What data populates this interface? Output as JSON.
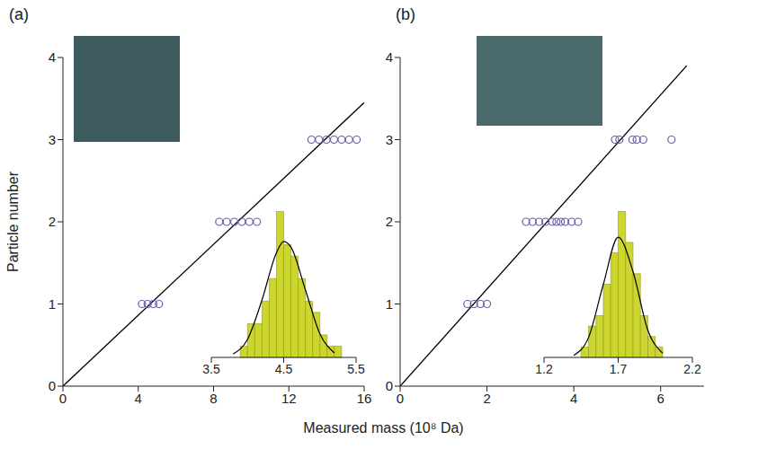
{
  "chart_data": [
    {
      "type": "scatter",
      "title": "(a)",
      "x_label": "Measured mass (10⁸ Da)",
      "y_label": "Particle number",
      "xlim": [
        0,
        16
      ],
      "xticks": [
        0,
        4,
        8,
        12,
        16
      ],
      "ylim": [
        0,
        4
      ],
      "yticks": [
        0,
        1,
        2,
        3,
        4
      ],
      "grid": false,
      "series": [
        {
          "type": "scatter",
          "color": "#6a5aa8",
          "marker": "circle_open",
          "x": [
            4.2,
            4.5,
            4.8,
            5.1,
            8.3,
            8.7,
            9.1,
            9.5,
            9.9,
            10.3,
            13.2,
            13.6,
            14.0,
            14.4,
            14.8,
            15.2,
            15.6
          ],
          "y": [
            1,
            1,
            1,
            1,
            2,
            2,
            2,
            2,
            2,
            2,
            3,
            3,
            3,
            3,
            3,
            3,
            3
          ]
        },
        {
          "type": "line",
          "color": "#000000",
          "x": [
            0,
            16
          ],
          "y": [
            0,
            3.45
          ]
        }
      ],
      "inset": {
        "type": "histogram",
        "color": "#cdd62e",
        "xlim": [
          3.5,
          5.5
        ],
        "xticks": [
          3.5,
          4.5,
          5.5
        ],
        "bins": [
          3.9,
          4.0,
          4.1,
          4.2,
          4.3,
          4.4,
          4.5,
          4.6,
          4.7,
          4.8,
          4.9,
          5.0,
          5.1,
          5.2,
          5.3
        ],
        "counts": [
          1,
          3,
          3,
          5,
          7,
          13,
          10,
          9,
          7,
          5,
          4,
          2,
          1,
          1
        ],
        "fit": {
          "color": "#000000",
          "x": [
            3.8,
            4.0,
            4.2,
            4.4,
            4.5,
            4.6,
            4.8,
            5.0,
            5.2
          ],
          "y": [
            0.3,
            1.6,
            5.1,
            9.3,
            10.3,
            9.8,
            6.0,
            2.1,
            0.4
          ]
        }
      }
    },
    {
      "type": "scatter",
      "title": "(b)",
      "xlim": [
        0,
        7
      ],
      "xticks": [
        0,
        2,
        4,
        6
      ],
      "ylim": [
        0,
        4
      ],
      "yticks": [
        0,
        1,
        2,
        3,
        4
      ],
      "grid": false,
      "series": [
        {
          "type": "scatter",
          "color": "#6a5aa8",
          "marker": "circle_open",
          "x": [
            1.55,
            1.7,
            1.85,
            2.0,
            2.9,
            3.05,
            3.2,
            3.35,
            3.5,
            3.6,
            3.7,
            3.8,
            3.95,
            4.1,
            4.95,
            5.05,
            5.35,
            5.45,
            5.6,
            6.25
          ],
          "y": [
            1,
            1,
            1,
            1,
            2,
            2,
            2,
            2,
            2,
            2,
            2,
            2,
            2,
            2,
            3,
            3,
            3,
            3,
            3,
            3
          ]
        },
        {
          "type": "line",
          "color": "#000000",
          "x": [
            0,
            6.6
          ],
          "y": [
            0,
            3.9
          ]
        }
      ],
      "inset": {
        "type": "histogram",
        "color": "#cdd62e",
        "xlim": [
          1.2,
          2.2
        ],
        "xticks": [
          1.2,
          1.7,
          2.2
        ],
        "bins": [
          1.45,
          1.5,
          1.55,
          1.6,
          1.65,
          1.7,
          1.75,
          1.8,
          1.85,
          1.9,
          1.95,
          2.0
        ],
        "counts": [
          1,
          3,
          4,
          7,
          10,
          14,
          11,
          8,
          4,
          2,
          1
        ],
        "fit": {
          "color": "#000000",
          "x": [
            1.4,
            1.5,
            1.6,
            1.7,
            1.8,
            1.9,
            2.0
          ],
          "y": [
            0.2,
            1.9,
            7.0,
            11.5,
            8.2,
            2.6,
            0.4
          ]
        }
      }
    }
  ]
}
